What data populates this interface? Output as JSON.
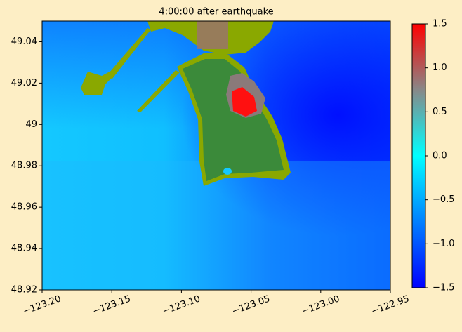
{
  "chart_data": {
    "type": "heatmap",
    "title": "4:00:00 after earthquake",
    "xlim": [
      -123.2,
      -122.95
    ],
    "xticks": [
      {
        "value": -123.2,
        "label": "−123.20"
      },
      {
        "value": -123.15,
        "label": "−123.15"
      },
      {
        "value": -123.1,
        "label": "−123.10"
      },
      {
        "value": -123.05,
        "label": "−123.05"
      },
      {
        "value": -123.0,
        "label": "−123.00"
      },
      {
        "value": -122.95,
        "label": "−122.95"
      }
    ],
    "ylim": [
      48.92,
      49.05
    ],
    "yticks": [
      48.92,
      48.94,
      48.96,
      48.98,
      49.0,
      49.02,
      49.04
    ],
    "colorbar": {
      "lim": [
        -1.5,
        1.5
      ],
      "ticks": [
        {
          "value": -1.5,
          "label": "−1.5"
        },
        {
          "value": -1.0,
          "label": "−1.0"
        },
        {
          "value": -0.5,
          "label": "−0.5"
        },
        {
          "value": 0.0,
          "label": "0.0"
        },
        0.5,
        {
          "value": 1.0,
          "label": "1.0"
        },
        1.5
      ]
    }
  }
}
